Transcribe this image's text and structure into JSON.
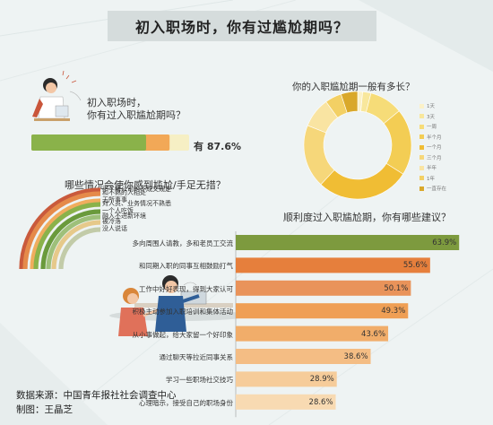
{
  "title": "初入职场时，你有过尴尬期吗？",
  "q1": {
    "question": "初入职场时，\n你有过入职尴尬期吗？",
    "answer": "有",
    "value": "87.6%"
  },
  "q2": {
    "title": "哪些情况会使你感到尴尬/手足无措？",
    "items": [
      "不了解公司的不成文规定",
      "和不熟的人相处",
      "无所事事",
      "对人员、业务情况不熟悉",
      "一个人吃饭",
      "融入不进新环境",
      "被冷落",
      "没人说话"
    ]
  },
  "q3": {
    "title": "你的入职尴尬期一般有多长？",
    "legend": [
      "1天",
      "3天",
      "一周",
      "半个月",
      "一个月",
      "三个月",
      "半年",
      "1年",
      "一直存在"
    ]
  },
  "q4": {
    "title": "顺利度过入职尴尬期，你有哪些建议？"
  },
  "source": "数据来源：中国青年报社社会调查中心",
  "credit": "制图：王晶芝",
  "colors": {
    "green": "#8ab24a",
    "olive": "#7d9a3e",
    "orange": "#f2a857",
    "yellow": "#f2c44a",
    "pale": "#f6efc4",
    "gray": "#d6dad6",
    "red": "#c9553a",
    "blue": "#3c6fa5"
  },
  "chart_data": [
    {
      "type": "bar",
      "title": "初入职场时，你有过入职尴尬期吗？",
      "categories": [
        "有"
      ],
      "values": [
        87.6
      ],
      "ylim": [
        0,
        100
      ]
    },
    {
      "type": "bar",
      "title": "哪些情况会使你感到尴尬/手足无措？",
      "categories": [
        "不了解公司的不成文规定",
        "和不熟的人相处",
        "无所事事",
        "对人员、业务情况不熟悉",
        "一个人吃饭",
        "融入不进新环境",
        "被冷落",
        "没人说话"
      ],
      "values": [
        48,
        46,
        42,
        40,
        36,
        33,
        30,
        26
      ],
      "arc_colors": [
        "#c95a3c",
        "#e58a4a",
        "#f0ad5e",
        "#8ab24a",
        "#6a9a3c",
        "#9ec07a",
        "#e6c98a",
        "#c2cba8"
      ]
    },
    {
      "type": "pie",
      "title": "你的入职尴尬期一般有多长？",
      "categories": [
        "1天",
        "3天",
        "一周",
        "半个月",
        "一个月",
        "三个月",
        "半年",
        "1年",
        "一直存在"
      ],
      "values": [
        1.5,
        2.5,
        10,
        20,
        28,
        19,
        9,
        5,
        5
      ],
      "colors": [
        "#fbf1c8",
        "#f8e79c",
        "#f6dc78",
        "#f3cd54",
        "#f0bd34",
        "#f6d77a",
        "#f9e4a2",
        "#f3d064",
        "#d9a82a"
      ]
    },
    {
      "type": "bar",
      "title": "顺利度过入职尴尬期，你有哪些建议？",
      "categories": [
        "多向周围人请教，多和老员工交流",
        "和同期入职的同事互相鼓励打气",
        "工作中好好表现，得到大家认可",
        "积极主动参加入职培训和集体活动",
        "从小事做起，给大家留一个好印象",
        "通过聊天等拉近同事关系",
        "学习一些职场社交技巧",
        "心理暗示，接受自己的职场身份"
      ],
      "values": [
        63.9,
        55.6,
        50.1,
        49.3,
        43.6,
        38.6,
        28.9,
        28.6
      ],
      "labels": [
        "63.9%",
        "55.6%",
        "50.1%",
        "49.3%",
        "43.6%",
        "38.6%",
        "28.9%",
        "28.6%"
      ],
      "xlim": [
        0,
        70
      ],
      "colors": [
        "#7d9a3e",
        "#e67f3c",
        "#e9935a",
        "#ef9f55",
        "#f1ad6a",
        "#f4bd84",
        "#f6cc9a",
        "#f8dab2"
      ]
    }
  ]
}
